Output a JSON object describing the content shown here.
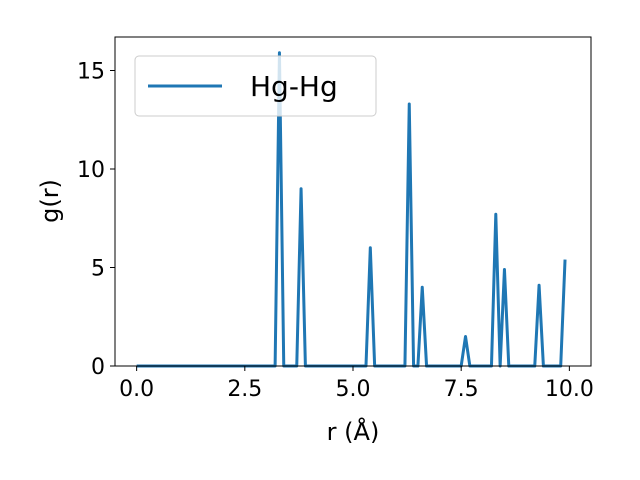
{
  "chart_data": {
    "type": "line",
    "xlabel": "r (Å)",
    "ylabel": "g(r)",
    "xlim": [
      -0.5,
      10.5
    ],
    "ylim": [
      0,
      16.7
    ],
    "xticks": [
      0.0,
      2.5,
      5.0,
      7.5,
      10.0
    ],
    "xtick_labels": [
      "0.0",
      "2.5",
      "5.0",
      "7.5",
      "10.0"
    ],
    "yticks": [
      0,
      5,
      10,
      15
    ],
    "ytick_labels": [
      "0",
      "5",
      "10",
      "15"
    ],
    "grid": false,
    "legend_position": "top-left",
    "line_color": "#1f77b4",
    "series": [
      {
        "name": "Hg-Hg",
        "x": [
          0.0,
          3.2,
          3.3,
          3.4,
          3.7,
          3.8,
          3.9,
          5.3,
          5.4,
          5.5,
          6.2,
          6.3,
          6.4,
          6.5,
          6.6,
          6.7,
          7.5,
          7.6,
          7.7,
          8.2,
          8.3,
          8.4,
          8.5,
          8.6,
          9.2,
          9.3,
          9.4,
          9.8,
          9.9
        ],
        "y": [
          0,
          0,
          15.9,
          0,
          0,
          9.0,
          0,
          0,
          6.0,
          0,
          0,
          13.3,
          0,
          0,
          4.0,
          0,
          0,
          1.5,
          0,
          0,
          7.7,
          0,
          4.9,
          0,
          0,
          4.1,
          0,
          0,
          5.4
        ]
      }
    ]
  }
}
